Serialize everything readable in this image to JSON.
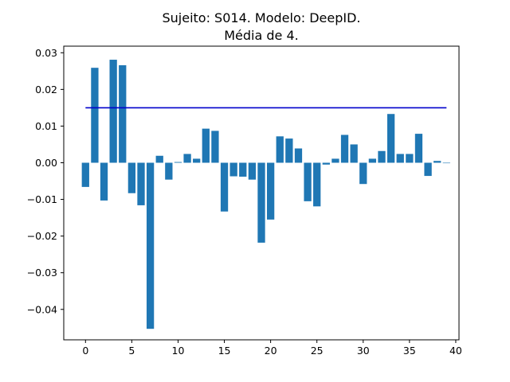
{
  "chart_data": {
    "type": "bar",
    "title_line1": "Sujeito: S014. Modelo: DeepID.",
    "title_line2": "Média de 4.",
    "xlabel": "",
    "ylabel": "",
    "x": [
      0,
      1,
      2,
      3,
      4,
      5,
      6,
      7,
      8,
      9,
      10,
      11,
      12,
      13,
      14,
      15,
      16,
      17,
      18,
      19,
      20,
      21,
      22,
      23,
      24,
      25,
      26,
      27,
      28,
      29,
      30,
      31,
      32,
      33,
      34,
      35,
      36,
      37,
      38,
      39
    ],
    "values": [
      -0.0066,
      0.0259,
      -0.0103,
      0.0281,
      0.0266,
      -0.0083,
      -0.0116,
      -0.0453,
      0.0019,
      -0.0046,
      0.0002,
      0.0024,
      0.0011,
      0.0093,
      0.0087,
      -0.0133,
      -0.0037,
      -0.0038,
      -0.0046,
      -0.0218,
      -0.0155,
      0.0072,
      0.0066,
      0.0039,
      -0.0105,
      -0.0119,
      -0.0005,
      0.0011,
      0.0076,
      0.005,
      -0.0058,
      0.0011,
      0.0032,
      0.0133,
      0.0024,
      0.0024,
      0.0079,
      -0.0036,
      0.0005,
      0.0
    ],
    "bar_color": "#1f77b4",
    "reference_line": {
      "y": 0.015,
      "x_start": 0,
      "x_end": 39,
      "color": "#0000cc"
    },
    "xlim": [
      -2.35,
      40.35
    ],
    "ylim": [
      -0.0483,
      0.0318
    ],
    "x_ticks": [
      0,
      5,
      10,
      15,
      20,
      25,
      30,
      35,
      40
    ],
    "x_tick_labels": [
      "0",
      "5",
      "10",
      "15",
      "20",
      "25",
      "30",
      "35",
      "40"
    ],
    "y_ticks": [
      -0.04,
      -0.03,
      -0.02,
      -0.01,
      0.0,
      0.01,
      0.02,
      0.03
    ],
    "y_tick_labels": [
      "−0.04",
      "−0.03",
      "−0.02",
      "−0.01",
      "0.00",
      "0.01",
      "0.02",
      "0.03"
    ],
    "grid": false,
    "legend": "none"
  }
}
